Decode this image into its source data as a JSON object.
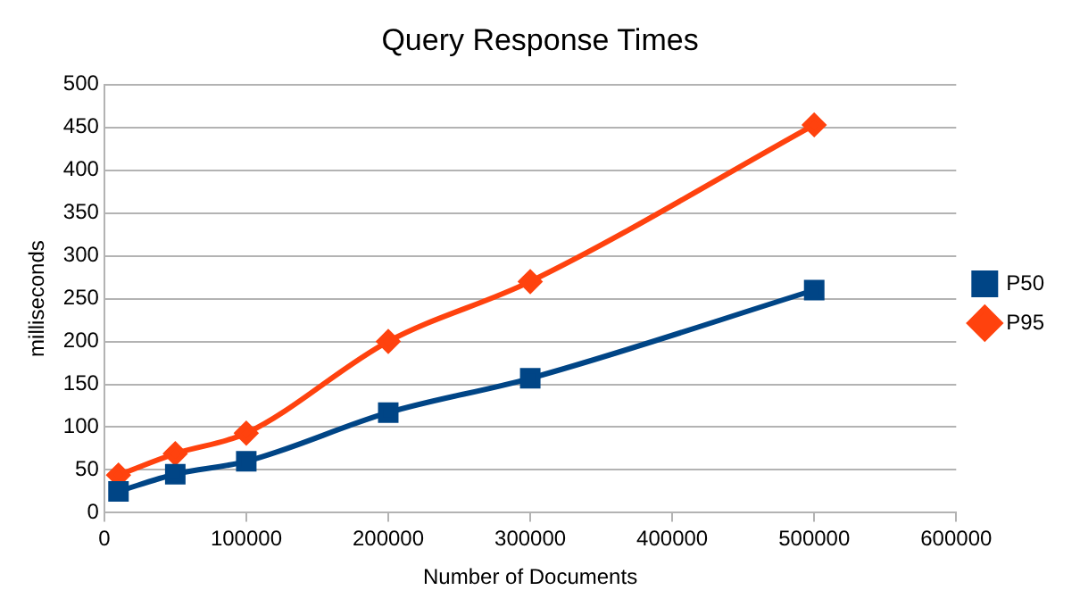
{
  "chart_data": {
    "type": "line",
    "title": "Query Response Times",
    "xlabel": "Number of Documents",
    "ylabel": "milliseconds",
    "x": [
      10000,
      50000,
      100000,
      200000,
      300000,
      500000
    ],
    "series": [
      {
        "name": "P50",
        "color": "#004586",
        "marker": "square",
        "values": [
          25,
          45,
          60,
          117,
          157,
          260
        ]
      },
      {
        "name": "P95",
        "color": "#ff420e",
        "marker": "diamond",
        "values": [
          44,
          69,
          93,
          200,
          270,
          453
        ]
      }
    ],
    "xlim": [
      0,
      600000
    ],
    "xticks": [
      0,
      100000,
      200000,
      300000,
      400000,
      500000,
      600000
    ],
    "ylim": [
      0,
      500
    ],
    "yticks": [
      0,
      50,
      100,
      150,
      200,
      250,
      300,
      350,
      400,
      450,
      500
    ],
    "grid": "y",
    "legend": "right"
  }
}
